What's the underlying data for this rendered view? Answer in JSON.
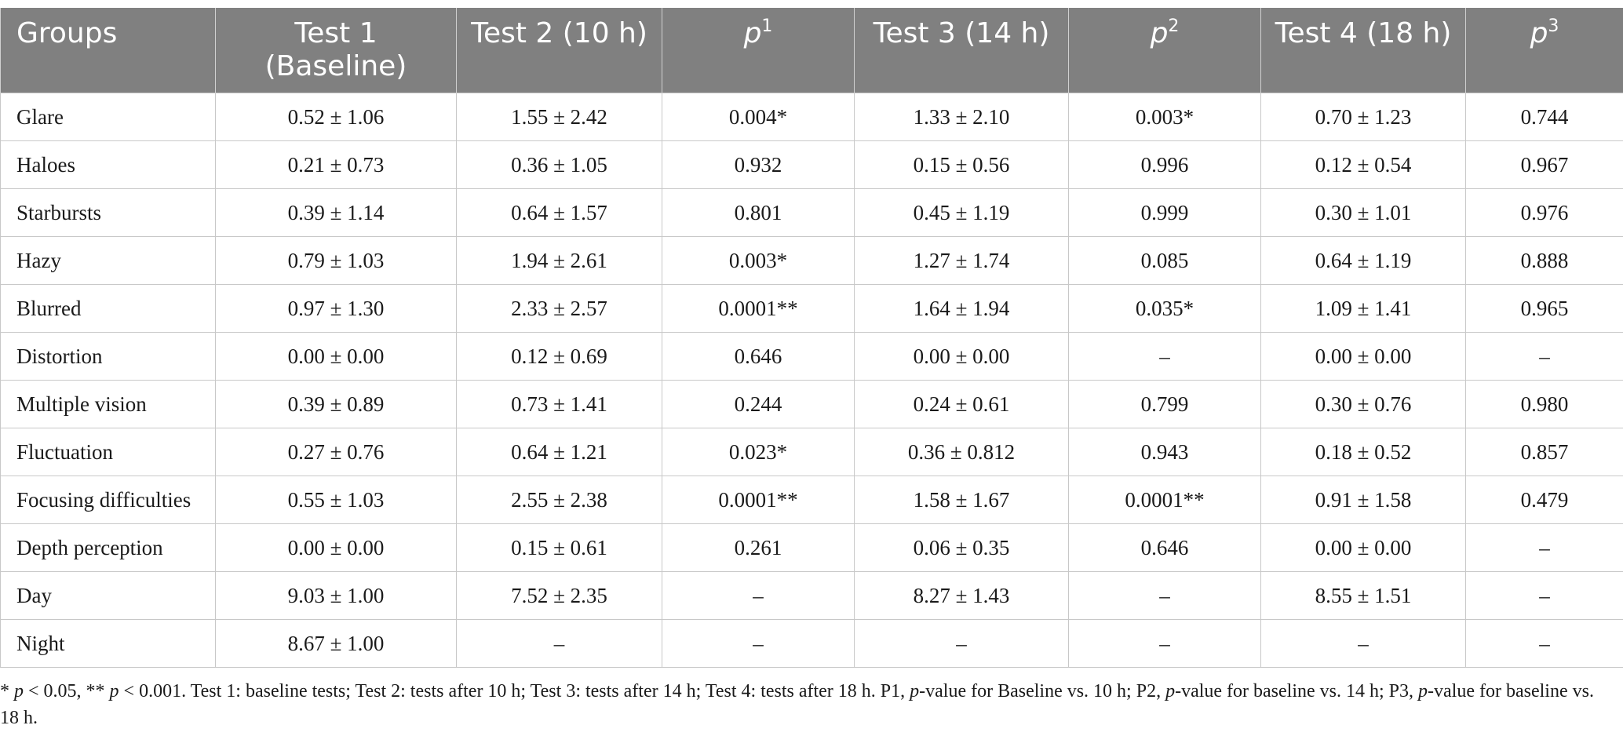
{
  "table": {
    "headers": [
      {
        "main": "Groups",
        "italic": false,
        "sup": ""
      },
      {
        "main": "Test 1",
        "sub": "(Baseline)",
        "italic": false,
        "sup": ""
      },
      {
        "main": "Test 2 (10 h)",
        "italic": false,
        "sup": ""
      },
      {
        "main": "p",
        "italic": true,
        "sup": "1"
      },
      {
        "main": "Test 3 (14 h)",
        "italic": false,
        "sup": ""
      },
      {
        "main": "p",
        "italic": true,
        "sup": "2"
      },
      {
        "main": "Test 4 (18 h)",
        "italic": false,
        "sup": ""
      },
      {
        "main": "p",
        "italic": true,
        "sup": "3"
      }
    ],
    "rows": [
      [
        "Glare",
        "0.52 ± 1.06",
        "1.55 ± 2.42",
        "0.004*",
        "1.33 ± 2.10",
        "0.003*",
        "0.70 ± 1.23",
        "0.744"
      ],
      [
        "Haloes",
        "0.21 ± 0.73",
        "0.36 ± 1.05",
        "0.932",
        "0.15 ± 0.56",
        "0.996",
        "0.12 ± 0.54",
        "0.967"
      ],
      [
        "Starbursts",
        "0.39 ± 1.14",
        "0.64 ± 1.57",
        "0.801",
        "0.45 ± 1.19",
        "0.999",
        "0.30 ± 1.01",
        "0.976"
      ],
      [
        "Hazy",
        "0.79 ± 1.03",
        "1.94 ± 2.61",
        "0.003*",
        "1.27 ± 1.74",
        "0.085",
        "0.64 ± 1.19",
        "0.888"
      ],
      [
        "Blurred",
        "0.97 ± 1.30",
        "2.33 ± 2.57",
        "0.0001**",
        "1.64 ± 1.94",
        "0.035*",
        "1.09 ± 1.41",
        "0.965"
      ],
      [
        "Distortion",
        "0.00 ± 0.00",
        "0.12 ± 0.69",
        "0.646",
        "0.00 ± 0.00",
        "–",
        "0.00 ± 0.00",
        "–"
      ],
      [
        "Multiple vision",
        "0.39 ± 0.89",
        "0.73 ± 1.41",
        "0.244",
        "0.24 ± 0.61",
        "0.799",
        "0.30 ± 0.76",
        "0.980"
      ],
      [
        "Fluctuation",
        "0.27 ± 0.76",
        "0.64 ± 1.21",
        "0.023*",
        "0.36 ± 0.812",
        "0.943",
        "0.18 ± 0.52",
        "0.857"
      ],
      [
        "Focusing difficulties",
        "0.55 ± 1.03",
        "2.55 ± 2.38",
        "0.0001**",
        "1.58 ± 1.67",
        "0.0001**",
        "0.91 ± 1.58",
        "0.479"
      ],
      [
        "Depth perception",
        "0.00 ± 0.00",
        "0.15 ± 0.61",
        "0.261",
        "0.06 ± 0.35",
        "0.646",
        "0.00 ± 0.00",
        "–"
      ],
      [
        "Day",
        "9.03 ± 1.00",
        "7.52 ± 2.35",
        "–",
        "8.27 ± 1.43",
        "–",
        "8.55 ± 1.51",
        "–"
      ],
      [
        "Night",
        "8.67 ± 1.00",
        "–",
        "–",
        "–",
        "–",
        "–",
        "–"
      ]
    ]
  },
  "footnote": {
    "parts": [
      {
        "t": "* ",
        "i": false
      },
      {
        "t": "p",
        "i": true
      },
      {
        "t": " < 0.05, ** ",
        "i": false
      },
      {
        "t": "p",
        "i": true
      },
      {
        "t": " < 0.001. Test 1: baseline tests; Test 2: tests after 10 h; Test 3: tests after 14 h; Test 4: tests after 18 h. P1, ",
        "i": false
      },
      {
        "t": "p",
        "i": true
      },
      {
        "t": "-value for Baseline vs. 10 h; P2, ",
        "i": false
      },
      {
        "t": "p",
        "i": true
      },
      {
        "t": "-value for baseline vs. 14 h; P3, ",
        "i": false
      },
      {
        "t": "p",
        "i": true
      },
      {
        "t": "-value for baseline vs. 18 h.",
        "i": false
      }
    ]
  }
}
